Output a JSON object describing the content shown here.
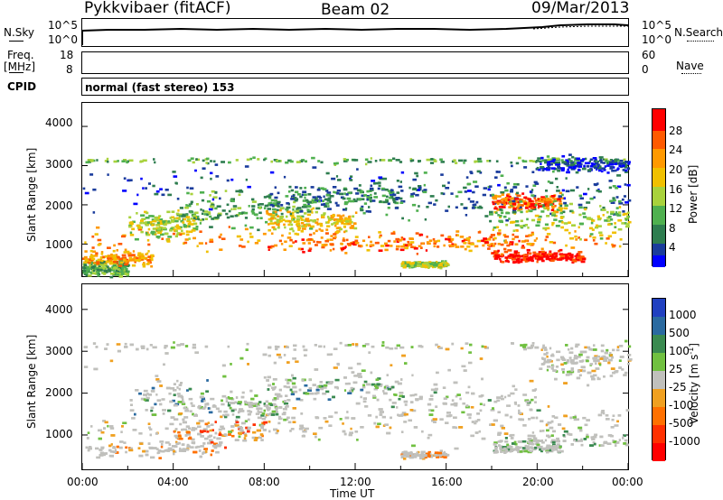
{
  "header": {
    "station": "Pykkvibaer (fitACF)",
    "beam": "Beam 02",
    "date": "09/Mar/2013"
  },
  "top_panels": {
    "nsky_label": "N.Sky",
    "nsky_ticks": [
      "10^5",
      "10^0"
    ],
    "nsearch_label": "N.Search",
    "nsearch_ticks": [
      "10^5",
      "10^0"
    ],
    "freq_label": "Freq.",
    "freq_unit": "[MHz]",
    "freq_ticks": [
      "18",
      "8"
    ],
    "nave_label": "Nave",
    "nave_ticks": [
      "60",
      "0"
    ],
    "cpid_label": "CPID",
    "cpid_text": "normal (fast stereo) 153"
  },
  "chart_data": [
    {
      "type": "heatmap",
      "name": "power",
      "ylabel": "Slant Range [km]",
      "ylim": [
        180,
        4600
      ],
      "yticks": [
        "4000",
        "3000",
        "2000",
        "1000"
      ],
      "xlim": [
        0,
        24
      ],
      "colorbar": {
        "label": "Power [dB]",
        "ticks": [
          "28",
          "24",
          "20",
          "16",
          "12",
          "8",
          "4"
        ],
        "colors": [
          "#0000ff",
          "#1a3c9c",
          "#2e7d4f",
          "#4fb04f",
          "#a8d23c",
          "#f0c000",
          "#ff9900",
          "#ff5a00",
          "#ff0000"
        ]
      }
    },
    {
      "type": "heatmap",
      "name": "velocity",
      "ylabel": "Slant Range [km]",
      "ylim": [
        180,
        4600
      ],
      "yticks": [
        "4000",
        "3000",
        "2000",
        "1000"
      ],
      "xlim": [
        0,
        24
      ],
      "xlabel": "Time UT",
      "xticks": [
        "00:00",
        "04:00",
        "08:00",
        "12:00",
        "16:00",
        "20:00",
        "00:00"
      ],
      "colorbar": {
        "label": "Velocity [m s",
        "label_exp": "-1",
        "label_end": "]",
        "ticks": [
          "1000",
          "500",
          "100",
          "25",
          "-25",
          "-100",
          "-500",
          "-1000"
        ],
        "colors": [
          "#2040c0",
          "#2a6aa0",
          "#3a8a50",
          "#70c040",
          "#c0c0bc",
          "#f0a020",
          "#ff7000",
          "#ff3000",
          "#ff0000"
        ]
      }
    }
  ]
}
